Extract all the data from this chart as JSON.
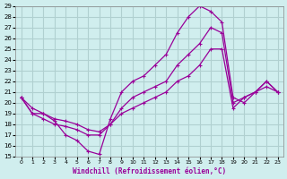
{
  "xlabel": "Windchill (Refroidissement éolien,°C)",
  "background_color": "#d0eeee",
  "grid_color": "#b0d0d0",
  "line_color": "#990099",
  "xlim": [
    0,
    23
  ],
  "ylim": [
    15,
    29
  ],
  "xticks": [
    0,
    1,
    2,
    3,
    4,
    5,
    6,
    7,
    8,
    9,
    10,
    11,
    12,
    13,
    14,
    15,
    16,
    17,
    18,
    19,
    20,
    21,
    22,
    23
  ],
  "yticks": [
    15,
    16,
    17,
    18,
    19,
    20,
    21,
    22,
    23,
    24,
    25,
    26,
    27,
    28,
    29
  ],
  "series1_x": [
    0,
    1,
    2,
    3,
    4,
    5,
    6,
    7,
    8,
    9,
    10,
    11,
    12,
    13,
    14,
    15,
    16,
    17,
    18,
    19,
    20,
    21,
    22,
    23
  ],
  "series1_y": [
    20.5,
    19.5,
    19.0,
    18.3,
    17.0,
    16.5,
    15.5,
    15.2,
    18.5,
    21.0,
    22.0,
    22.5,
    23.5,
    24.5,
    26.5,
    28.0,
    29.0,
    28.5,
    27.5,
    20.5,
    20.0,
    21.0,
    22.0,
    21.0
  ],
  "series2_x": [
    0,
    1,
    2,
    3,
    4,
    5,
    6,
    7,
    8,
    9,
    10,
    11,
    12,
    13,
    14,
    15,
    16,
    17,
    18,
    19,
    20,
    21,
    22,
    23
  ],
  "series2_y": [
    20.5,
    19.0,
    18.5,
    18.0,
    17.8,
    17.5,
    17.0,
    17.0,
    18.0,
    19.5,
    20.5,
    21.0,
    21.5,
    22.0,
    23.5,
    24.5,
    25.5,
    27.0,
    26.5,
    20.0,
    20.5,
    21.0,
    22.0,
    21.0
  ],
  "series3_x": [
    0,
    1,
    2,
    3,
    4,
    5,
    6,
    7,
    8,
    9,
    10,
    11,
    12,
    13,
    14,
    15,
    16,
    17,
    18,
    19,
    20,
    21,
    22,
    23
  ],
  "series3_y": [
    20.5,
    19.0,
    19.0,
    18.5,
    18.3,
    18.0,
    17.5,
    17.3,
    18.0,
    19.0,
    19.5,
    20.0,
    20.5,
    21.0,
    22.0,
    22.5,
    23.5,
    25.0,
    25.0,
    19.5,
    20.5,
    21.0,
    21.5,
    21.0
  ]
}
